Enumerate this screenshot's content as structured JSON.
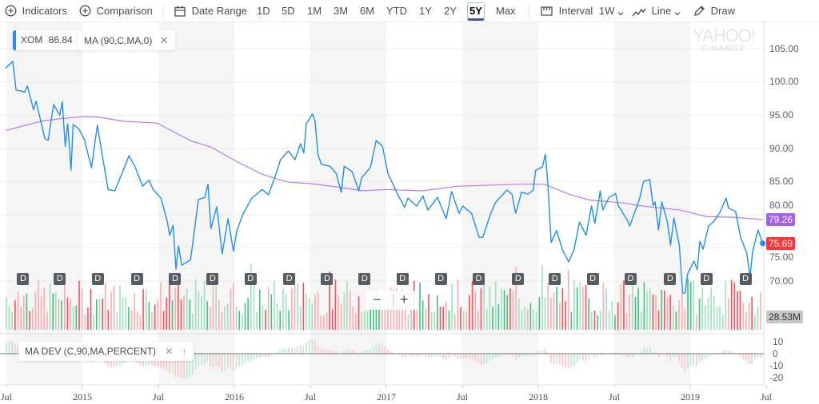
{
  "toolbar": {
    "indicators": "Indicators",
    "comparison": "Comparison",
    "date_range": "Date Range",
    "ranges": [
      "1D",
      "5D",
      "1M",
      "3M",
      "6M",
      "YTD",
      "1Y",
      "2Y",
      "5Y",
      "Max"
    ],
    "selected_range": "5Y",
    "interval_label": "Interval",
    "interval_value": "1W",
    "chart_type": "Line",
    "draw": "Draw"
  },
  "legend": {
    "symbol": "XOM",
    "symbol_value": "86.84",
    "ma": "MA (90,C,MA,0)",
    "ma_dev": "MA DEV (C,90,MA,PERCENT)"
  },
  "watermark": {
    "line1": "YAHOO!",
    "line2": "FINANCE"
  },
  "zoom_controls": {
    "minus": "−",
    "plus": "+"
  },
  "badges": {
    "ma_last": "79.26",
    "price_last": "75.69",
    "volume_last": "28.53M"
  },
  "dividend_marker": "D",
  "colors": {
    "price": "#1e8ff0",
    "ma": "#b57af5",
    "ma_badge": "#a061f0",
    "price_badge": "#ff333a",
    "up": "#3cc47c",
    "down": "#ff4d52",
    "selected": "#3f51b5"
  },
  "chart_data": {
    "type": "line",
    "y_ticks": [
      "105.00",
      "100.00",
      "95.00",
      "90.00",
      "85.00",
      "80.00",
      "75.00",
      "70.00"
    ],
    "ylim": [
      66,
      107
    ],
    "dev_ticks": [
      "10",
      "0",
      "-10",
      "-20"
    ],
    "x_ticks": [
      "Jul",
      "2015",
      "Jul",
      "2016",
      "Jul",
      "2017",
      "Jul",
      "2018",
      "Jul",
      "2019",
      "Jul"
    ],
    "series": [
      {
        "name": "XOM",
        "points": [
          [
            "2014-07-01",
            102.1
          ],
          [
            "2014-07-18",
            103.1
          ],
          [
            "2014-07-26",
            98.8
          ],
          [
            "2014-08-16",
            98.5
          ],
          [
            "2014-08-22",
            99.4
          ],
          [
            "2014-09-06",
            95.8
          ],
          [
            "2014-09-12",
            97.1
          ],
          [
            "2014-10-03",
            91.5
          ],
          [
            "2014-10-11",
            91.2
          ],
          [
            "2014-10-24",
            96.6
          ],
          [
            "2014-11-08",
            95.0
          ],
          [
            "2014-11-14",
            97.0
          ],
          [
            "2014-11-21",
            90.3
          ],
          [
            "2014-11-27",
            93.7
          ],
          [
            "2014-12-05",
            86.7
          ],
          [
            "2014-12-10",
            93.6
          ],
          [
            "2014-12-24",
            92.9
          ],
          [
            "2015-01-06",
            91.3
          ],
          [
            "2015-01-23",
            87.1
          ],
          [
            "2015-02-06",
            93.5
          ],
          [
            "2015-02-19",
            88.5
          ],
          [
            "2015-03-04",
            83.8
          ],
          [
            "2015-03-20",
            83.6
          ],
          [
            "2015-04-10",
            86.8
          ],
          [
            "2015-04-23",
            88.9
          ],
          [
            "2015-05-07",
            87.3
          ],
          [
            "2015-05-26",
            84.3
          ],
          [
            "2015-06-10",
            85.2
          ],
          [
            "2015-06-20",
            83.8
          ],
          [
            "2015-07-09",
            82.5
          ],
          [
            "2015-07-24",
            79.0
          ],
          [
            "2015-07-30",
            76.9
          ],
          [
            "2015-08-07",
            78.4
          ],
          [
            "2015-08-14",
            71.8
          ],
          [
            "2015-08-20",
            75.3
          ],
          [
            "2015-08-28",
            72.4
          ],
          [
            "2015-09-18",
            73.2
          ],
          [
            "2015-10-07",
            82.3
          ],
          [
            "2015-10-22",
            82.6
          ],
          [
            "2015-10-30",
            84.6
          ],
          [
            "2015-11-06",
            77.9
          ],
          [
            "2015-11-20",
            81.2
          ],
          [
            "2015-12-03",
            74.1
          ],
          [
            "2015-12-17",
            79.4
          ],
          [
            "2015-12-30",
            74.5
          ],
          [
            "2016-01-07",
            77.6
          ],
          [
            "2016-01-22",
            80.1
          ],
          [
            "2016-02-12",
            82.5
          ],
          [
            "2016-03-08",
            83.8
          ],
          [
            "2016-03-23",
            83.0
          ],
          [
            "2016-04-10",
            86.1
          ],
          [
            "2016-04-21",
            88.3
          ],
          [
            "2016-05-10",
            89.6
          ],
          [
            "2016-05-26",
            88.3
          ],
          [
            "2016-06-08",
            90.7
          ],
          [
            "2016-06-16",
            89.3
          ],
          [
            "2016-06-22",
            93.7
          ],
          [
            "2016-07-07",
            95.2
          ],
          [
            "2016-07-13",
            94.1
          ],
          [
            "2016-07-20",
            89.1
          ],
          [
            "2016-07-28",
            87.6
          ],
          [
            "2016-08-18",
            87.3
          ],
          [
            "2016-09-02",
            86.2
          ],
          [
            "2016-09-14",
            83.4
          ],
          [
            "2016-09-21",
            87.3
          ],
          [
            "2016-10-10",
            86.5
          ],
          [
            "2016-10-26",
            83.6
          ],
          [
            "2016-11-02",
            85.6
          ],
          [
            "2016-11-23",
            87.1
          ],
          [
            "2016-12-07",
            91.2
          ],
          [
            "2016-12-22",
            90.3
          ],
          [
            "2017-01-05",
            86.2
          ],
          [
            "2017-01-28",
            83.1
          ],
          [
            "2017-02-14",
            81.1
          ],
          [
            "2017-02-22",
            82.5
          ],
          [
            "2017-03-15",
            81.3
          ],
          [
            "2017-03-30",
            82.8
          ],
          [
            "2017-04-11",
            80.7
          ],
          [
            "2017-05-04",
            82.6
          ],
          [
            "2017-05-25",
            79.4
          ],
          [
            "2017-06-07",
            83.5
          ],
          [
            "2017-06-25",
            80.2
          ],
          [
            "2017-07-04",
            81.3
          ],
          [
            "2017-07-25",
            80.2
          ],
          [
            "2017-08-12",
            76.6
          ],
          [
            "2017-08-21",
            76.6
          ],
          [
            "2017-09-08",
            80.0
          ],
          [
            "2017-09-21",
            81.9
          ],
          [
            "2017-10-18",
            83.7
          ],
          [
            "2017-10-30",
            83.1
          ],
          [
            "2017-11-08",
            80.2
          ],
          [
            "2017-11-22",
            83.4
          ],
          [
            "2017-12-07",
            83.1
          ],
          [
            "2017-12-20",
            83.7
          ],
          [
            "2017-12-26",
            86.7
          ],
          [
            "2018-01-11",
            87.2
          ],
          [
            "2018-01-18",
            89.1
          ],
          [
            "2018-01-24",
            84.7
          ],
          [
            "2018-02-01",
            75.8
          ],
          [
            "2018-02-14",
            77.6
          ],
          [
            "2018-03-01",
            74.6
          ],
          [
            "2018-03-15",
            72.9
          ],
          [
            "2018-03-28",
            74.7
          ],
          [
            "2018-04-10",
            78.9
          ],
          [
            "2018-04-26",
            76.9
          ],
          [
            "2018-05-09",
            81.3
          ],
          [
            "2018-05-17",
            78.7
          ],
          [
            "2018-05-30",
            83.6
          ],
          [
            "2018-06-05",
            80.7
          ],
          [
            "2018-06-20",
            82.6
          ],
          [
            "2018-07-06",
            83.2
          ],
          [
            "2018-07-12",
            81.4
          ],
          [
            "2018-08-02",
            79.3
          ],
          [
            "2018-08-09",
            78.3
          ],
          [
            "2018-09-01",
            82.3
          ],
          [
            "2018-09-11",
            85.0
          ],
          [
            "2018-09-26",
            85.3
          ],
          [
            "2018-10-04",
            81.4
          ],
          [
            "2018-10-09",
            81.9
          ],
          [
            "2018-10-17",
            77.7
          ],
          [
            "2018-10-25",
            81.9
          ],
          [
            "2018-11-07",
            79.0
          ],
          [
            "2018-11-15",
            75.4
          ],
          [
            "2018-11-23",
            79.5
          ],
          [
            "2018-12-06",
            75.4
          ],
          [
            "2018-12-14",
            68.2
          ],
          [
            "2018-12-20",
            68.2
          ],
          [
            "2018-12-26",
            71.1
          ],
          [
            "2019-01-10",
            73.0
          ],
          [
            "2019-01-18",
            71.7
          ],
          [
            "2019-01-24",
            76.0
          ],
          [
            "2019-02-01",
            74.8
          ],
          [
            "2019-02-14",
            78.3
          ],
          [
            "2019-02-27",
            79.0
          ],
          [
            "2019-03-13",
            80.3
          ],
          [
            "2019-03-28",
            82.5
          ],
          [
            "2019-04-03",
            81.0
          ],
          [
            "2019-04-20",
            80.5
          ],
          [
            "2019-05-02",
            76.6
          ],
          [
            "2019-05-17",
            74.2
          ],
          [
            "2019-05-25",
            70.6
          ],
          [
            "2019-05-31",
            74.5
          ],
          [
            "2019-06-13",
            77.7
          ],
          [
            "2019-06-24",
            75.69
          ]
        ]
      },
      {
        "name": "MA (90,C,MA,0)",
        "points": [
          [
            "2014-07-01",
            92.7
          ],
          [
            "2014-09-25",
            94.1
          ],
          [
            "2014-11-14",
            94.5
          ],
          [
            "2015-01-10",
            94.8
          ],
          [
            "2015-02-10",
            94.7
          ],
          [
            "2015-04-08",
            94.1
          ],
          [
            "2015-06-30",
            93.8
          ],
          [
            "2015-08-02",
            92.7
          ],
          [
            "2015-09-20",
            91.1
          ],
          [
            "2015-11-06",
            90.2
          ],
          [
            "2016-01-10",
            87.9
          ],
          [
            "2016-03-08",
            86.1
          ],
          [
            "2016-04-01",
            85.6
          ],
          [
            "2016-05-10",
            84.9
          ],
          [
            "2016-07-01",
            84.7
          ],
          [
            "2016-09-02",
            84.2
          ],
          [
            "2016-11-05",
            83.6
          ],
          [
            "2016-12-28",
            83.8
          ],
          [
            "2017-03-28",
            83.6
          ],
          [
            "2017-06-23",
            84.3
          ],
          [
            "2017-11-22",
            84.6
          ],
          [
            "2018-01-15",
            84.6
          ],
          [
            "2018-03-20",
            83.0
          ],
          [
            "2018-05-05",
            82.2
          ],
          [
            "2018-07-20",
            81.8
          ],
          [
            "2018-09-10",
            81.3
          ],
          [
            "2018-12-08",
            80.7
          ],
          [
            "2019-02-10",
            79.7
          ],
          [
            "2019-04-20",
            79.6
          ],
          [
            "2019-06-24",
            79.26
          ]
        ]
      }
    ],
    "dividends": [
      "2014-08-11",
      "2014-11-07",
      "2015-02-06",
      "2015-05-11",
      "2015-08-11",
      "2015-11-09",
      "2016-02-08",
      "2016-05-11",
      "2016-08-10",
      "2016-11-08",
      "2017-02-08",
      "2017-05-11",
      "2017-08-10",
      "2017-11-13",
      "2018-02-09",
      "2018-05-11",
      "2018-08-10",
      "2018-11-13",
      "2019-02-08",
      "2019-05-13"
    ]
  }
}
